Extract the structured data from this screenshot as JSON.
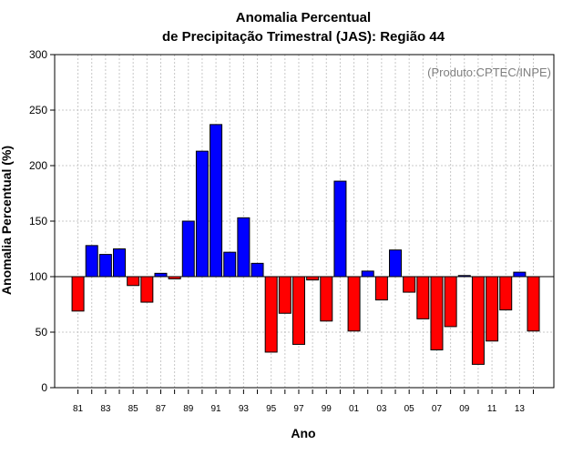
{
  "chart_data": {
    "type": "bar",
    "title_lines": [
      "Anomalia Percentual",
      "de Precipitação Trimestral (JAS): Região 44"
    ],
    "xlabel": "Ano",
    "ylabel": "Anomalia Percentual (%)",
    "credit": "(Produto:CPTEC/INPE)",
    "ylim": [
      0,
      300
    ],
    "yticks": [
      0,
      50,
      100,
      150,
      200,
      250,
      300
    ],
    "baseline": 100,
    "grid": true,
    "categories": [
      "81",
      "82",
      "83",
      "84",
      "85",
      "86",
      "87",
      "88",
      "89",
      "90",
      "91",
      "92",
      "93",
      "94",
      "95",
      "96",
      "97",
      "98",
      "99",
      "00",
      "01",
      "02",
      "03",
      "04",
      "05",
      "06",
      "07",
      "08",
      "09",
      "10",
      "11",
      "12",
      "13",
      "14"
    ],
    "xtick_labels": [
      "81",
      "83",
      "85",
      "87",
      "89",
      "91",
      "93",
      "95",
      "97",
      "99",
      "01",
      "03",
      "05",
      "07",
      "09",
      "11",
      "13"
    ],
    "values": [
      69,
      128,
      120,
      125,
      92,
      77,
      103,
      98,
      150,
      213,
      237,
      122,
      153,
      112,
      32,
      67,
      39,
      97,
      60,
      186,
      51,
      105,
      79,
      124,
      86,
      62,
      34,
      55,
      101,
      21,
      42,
      70,
      104,
      51
    ],
    "colors": {
      "above": "#0000ff",
      "below": "#ff0000",
      "axis": "#000000",
      "grid": "#c8c8c8",
      "credit": "#7f7f7f"
    }
  }
}
